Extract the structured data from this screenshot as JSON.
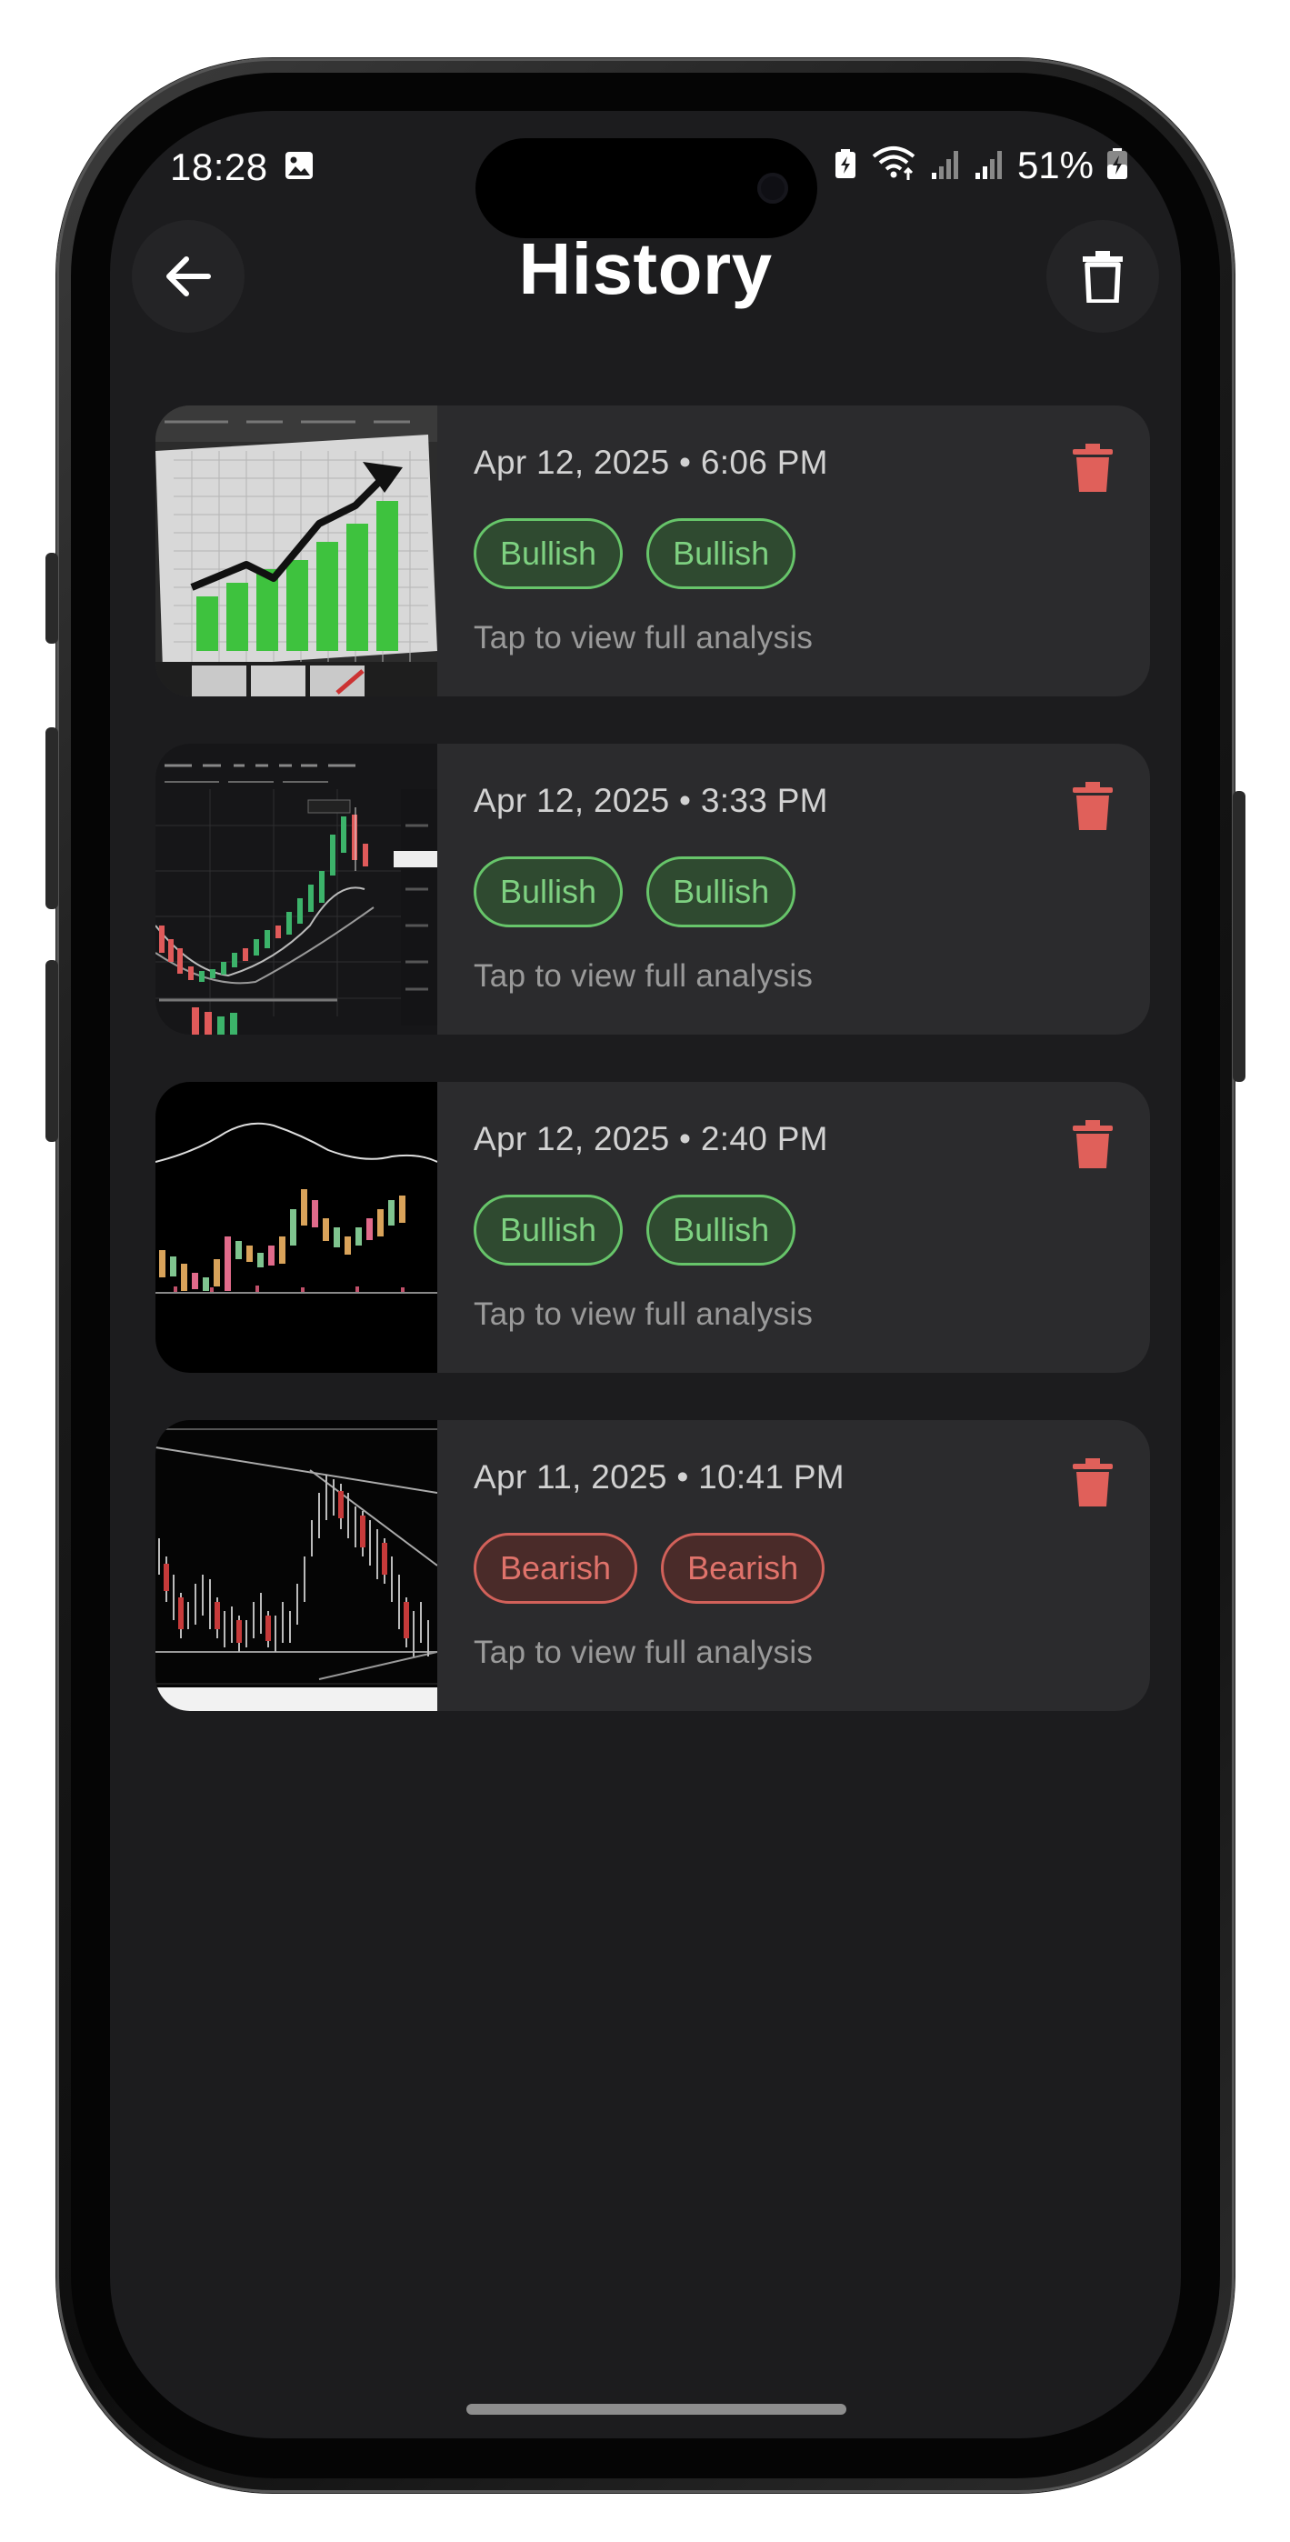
{
  "status_bar": {
    "time": "18:28",
    "battery_percent": "51%"
  },
  "header": {
    "title": "History"
  },
  "history": [
    {
      "date": "Apr 12, 2025 • 6:06 PM",
      "badges": [
        "Bullish",
        "Bullish"
      ],
      "hint": "Tap to view full analysis"
    },
    {
      "date": "Apr 12, 2025 • 3:33 PM",
      "badges": [
        "Bullish",
        "Bullish"
      ],
      "hint": "Tap to view full analysis"
    },
    {
      "date": "Apr 12, 2025 • 2:40 PM",
      "badges": [
        "Bullish",
        "Bullish"
      ],
      "hint": "Tap to view full analysis"
    },
    {
      "date": "Apr 11, 2025 • 10:41 PM",
      "badges": [
        "Bearish",
        "Bearish"
      ],
      "hint": "Tap to view full analysis"
    }
  ],
  "colors": {
    "bullish": "#7ed181",
    "bearish": "#e0736b",
    "delete": "#e0605a",
    "background": "#1c1c1e",
    "card": "#2b2b2d"
  },
  "icons": {
    "back": "arrow-left-icon",
    "clear_all": "trash-outline-icon",
    "delete_item": "trash-filled-icon"
  }
}
